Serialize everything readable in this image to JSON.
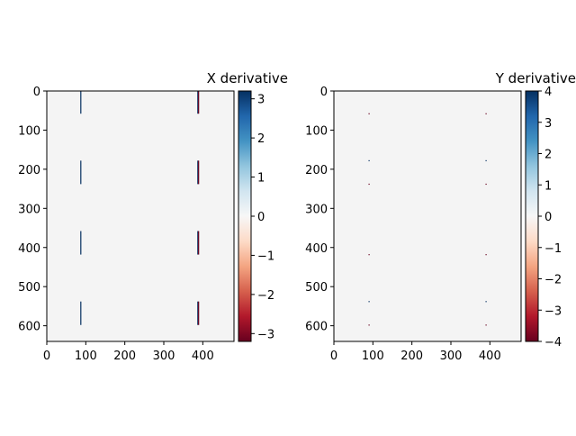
{
  "chart_data": [
    {
      "type": "heatmap",
      "title": "X derivative",
      "xlim": [
        0,
        480
      ],
      "ylim": [
        640,
        0
      ],
      "xticks": [
        0,
        100,
        200,
        300,
        400
      ],
      "yticks": [
        0,
        100,
        200,
        300,
        400,
        500,
        600
      ],
      "background_value": 0,
      "colormap": "RdBu",
      "colorbar": {
        "min": -3.2,
        "max": 3.2,
        "ticks": [
          3,
          2,
          1,
          0,
          -1,
          -2,
          -3
        ]
      },
      "features": [
        {
          "x": 87,
          "y0": 0,
          "y1": 58,
          "value": 3.2
        },
        {
          "x": 87,
          "y0": 178,
          "y1": 238,
          "value": 3.2
        },
        {
          "x": 87,
          "y0": 358,
          "y1": 418,
          "value": 3.2
        },
        {
          "x": 87,
          "y0": 538,
          "y1": 598,
          "value": 3.2
        },
        {
          "x": 387,
          "y0": 0,
          "y1": 58,
          "value": 3.2
        },
        {
          "x": 389,
          "y0": 0,
          "y1": 58,
          "value": -3.2
        },
        {
          "x": 387,
          "y0": 178,
          "y1": 238,
          "value": 3.2
        },
        {
          "x": 389,
          "y0": 178,
          "y1": 238,
          "value": -3.2
        },
        {
          "x": 387,
          "y0": 358,
          "y1": 418,
          "value": 3.2
        },
        {
          "x": 389,
          "y0": 358,
          "y1": 418,
          "value": -3.2
        },
        {
          "x": 387,
          "y0": 538,
          "y1": 598,
          "value": 3.2
        },
        {
          "x": 389,
          "y0": 538,
          "y1": 598,
          "value": -3.2
        }
      ]
    },
    {
      "type": "heatmap",
      "title": "Y derivative",
      "xlim": [
        0,
        480
      ],
      "ylim": [
        640,
        0
      ],
      "xticks": [
        0,
        100,
        200,
        300,
        400
      ],
      "yticks": [
        0,
        100,
        200,
        300,
        400,
        500,
        600
      ],
      "background_value": 0,
      "colormap": "RdBu",
      "colorbar": {
        "min": -4,
        "max": 4,
        "ticks": [
          4,
          3,
          2,
          1,
          0,
          -1,
          -2,
          -3,
          -4
        ]
      },
      "features": [
        {
          "x": 90,
          "y": 58,
          "value": -4
        },
        {
          "x": 90,
          "y": 178,
          "value": 4
        },
        {
          "x": 90,
          "y": 238,
          "value": -4
        },
        {
          "x": 90,
          "y": 418,
          "value": -4
        },
        {
          "x": 90,
          "y": 538,
          "value": 4
        },
        {
          "x": 90,
          "y": 598,
          "value": -4
        },
        {
          "x": 390,
          "y": 58,
          "value": -4
        },
        {
          "x": 390,
          "y": 178,
          "value": 4
        },
        {
          "x": 390,
          "y": 238,
          "value": -4
        },
        {
          "x": 390,
          "y": 418,
          "value": -4
        },
        {
          "x": 390,
          "y": 538,
          "value": 4
        },
        {
          "x": 390,
          "y": 598,
          "value": -4
        }
      ]
    }
  ]
}
